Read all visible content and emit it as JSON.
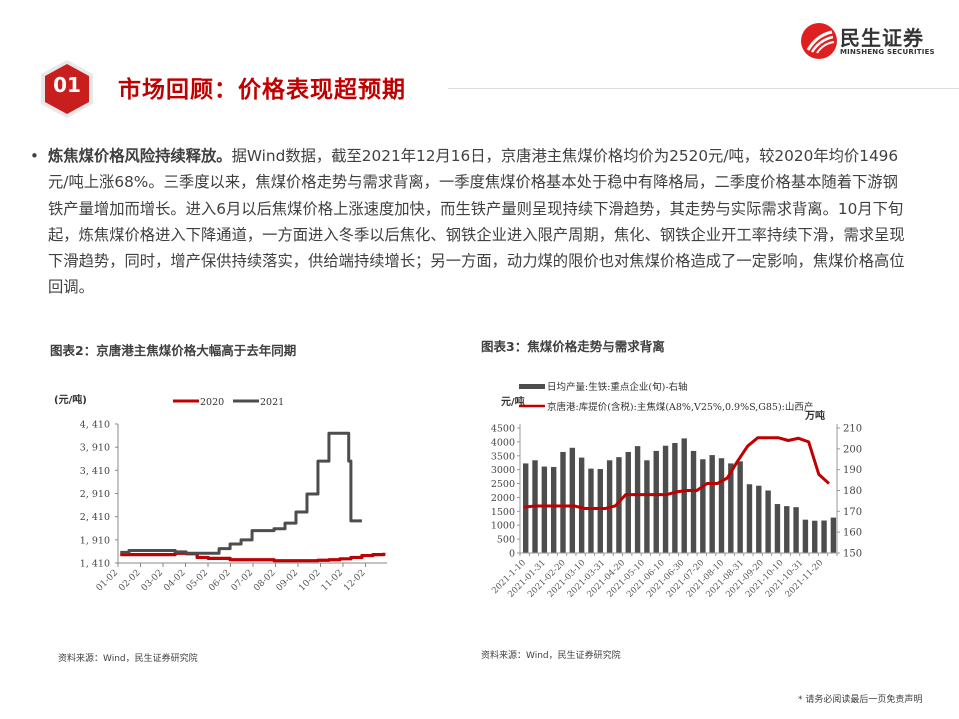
{
  "brand": {
    "name_cn": "民生证券",
    "name_en": "MINSHENG SECURITIES",
    "accent_color": "#c00000",
    "logo_color": "#e02020"
  },
  "section": {
    "number": "01",
    "title": "市场回顾：价格表现超预期"
  },
  "body": {
    "bullet": "•",
    "lead": "炼焦煤价格风险持续释放。",
    "text": "据Wind数据，截至2021年12月16日，京唐港主焦煤价格均价为2520元/吨，较2020年均价1496元/吨上涨68%。三季度以来，焦煤价格走势与需求背离，一季度焦煤价格基本处于稳中有降格局，二季度价格基本随着下游钢铁产量增加而增长。进入6月以后焦煤价格上涨速度加快，而生铁产量则呈现持续下滑趋势，其走势与实际需求背离。10月下旬起，炼焦煤价格进入下降通道，一方面进入冬季以后焦化、钢铁企业进入限产周期，焦化、钢铁企业开工率持续下滑，需求呈现下滑趋势，同时，增产保供持续落实，供给端持续增长；另一方面，动力煤的限价也对焦煤价格造成了一定影响，焦煤价格高位回调。"
  },
  "figures": {
    "fig2_title": "图表2：京唐港主焦煤价格大幅高于去年同期",
    "fig3_title": "图表3：焦煤价格走势与需求背离",
    "fig2_source": "资料来源：Wind，民生证券研究院",
    "fig3_source": "资料来源：Wind，民生证券研究院"
  },
  "footer": {
    "disclaimer": "* 请务必阅读最后一页免责声明"
  },
  "chart_data": [
    {
      "type": "line",
      "title": "图表2：京唐港主焦煤价格大幅高于去年同期",
      "ylabel": "(元/吨)",
      "xlabel": "",
      "ylim": [
        1410,
        4410
      ],
      "yticks": [
        "4,410",
        "3,910",
        "3,410",
        "2,910",
        "2,410",
        "1,910",
        "1,410"
      ],
      "x_ticks": [
        "01-02",
        "02-02",
        "03-02",
        "04-02",
        "05-02",
        "06-02",
        "07-02",
        "08-02",
        "09-02",
        "10-02",
        "11-02",
        "12-02"
      ],
      "legend": [
        "2020",
        "2021"
      ],
      "legend_position": "top",
      "grid": false,
      "series": [
        {
          "name": "2020",
          "color": "#c00000",
          "x": [
            0.0,
            0.5,
            1.0,
            1.5,
            2.0,
            2.5,
            3.0,
            3.5,
            4.0,
            4.5,
            5.0,
            5.5,
            6.0,
            6.5,
            7.0,
            7.5,
            8.0,
            8.5,
            9.0,
            9.5,
            10.0,
            10.5,
            11.0,
            11.5,
            12.0
          ],
          "values": [
            1590,
            1590,
            1590,
            1590,
            1590,
            1620,
            1610,
            1530,
            1510,
            1510,
            1480,
            1480,
            1480,
            1480,
            1460,
            1460,
            1460,
            1460,
            1470,
            1480,
            1500,
            1530,
            1570,
            1590,
            1630
          ]
        },
        {
          "name": "2021",
          "color": "#4d4d4d",
          "x": [
            0.0,
            0.4,
            1.0,
            1.5,
            2.0,
            2.5,
            3.0,
            3.5,
            4.0,
            4.5,
            5.0,
            5.5,
            6.0,
            6.5,
            7.0,
            7.5,
            8.0,
            8.5,
            9.0,
            9.5,
            10.0,
            10.4,
            10.5,
            11.0
          ],
          "values": [
            1640,
            1680,
            1680,
            1680,
            1680,
            1650,
            1620,
            1620,
            1620,
            1720,
            1820,
            1910,
            2110,
            2110,
            2150,
            2270,
            2510,
            2900,
            3610,
            4210,
            4210,
            3610,
            2320,
            2320
          ]
        }
      ]
    },
    {
      "type": "bar",
      "title": "图表3：焦煤价格走势与需求背离",
      "ylabel_left": "元/吨",
      "ylabel_right": "万吨",
      "ylim_left": [
        0,
        4500
      ],
      "ylim_right": [
        150,
        210
      ],
      "yticks_left": [
        "4500",
        "4000",
        "3500",
        "3000",
        "2500",
        "2000",
        "1500",
        "1000",
        "500",
        "0"
      ],
      "yticks_right": [
        "210",
        "200",
        "190",
        "180",
        "170",
        "160",
        "150"
      ],
      "x_ticks": [
        "2021-1-10",
        "2021-01-31",
        "2021-02-20",
        "2021-03-10",
        "2021-03-31",
        "2021-04-20",
        "2021-05-10",
        "2021-06-10",
        "2021-06-30",
        "2021-07-20",
        "2021-08-10",
        "2021-08-31",
        "2021-09-20",
        "2021-10-10",
        "2021-10-31",
        "2021-11-20"
      ],
      "legend": [
        "日均产量:生铁:重点企业(旬)-右轴",
        "京唐港:库提价(含税):主焦煤(A8%,V25%,0.9%S,G85):山西产"
      ],
      "legend_position": "top",
      "grid": false,
      "series": [
        {
          "name": "日均产量:生铁:重点企业(旬)-右轴",
          "kind": "bar",
          "axis": "right",
          "color": "#4d4d4d",
          "values": [
            193.0,
            194.5,
            191.5,
            191.3,
            198.5,
            200.5,
            195.8,
            190.5,
            190.3,
            194.5,
            196.0,
            198.5,
            201.3,
            194.5,
            199.0,
            201.5,
            202.8,
            205.0,
            199.0,
            195.0,
            197.0,
            195.5,
            193.0,
            194.0,
            183.0,
            182.3,
            180.0,
            173.5,
            172.5,
            172.0,
            166.0,
            165.5,
            165.6,
            167.0
          ]
        },
        {
          "name": "京唐港:库提价(含税):主焦煤(A8%,V25%,0.9%S,G85):山西产",
          "kind": "line",
          "axis": "left",
          "color": "#c00000",
          "values": [
            1650,
            1690,
            1690,
            1690,
            1690,
            1690,
            1600,
            1600,
            1600,
            1700,
            2100,
            2100,
            2100,
            2100,
            2100,
            2200,
            2250,
            2250,
            2500,
            2500,
            2700,
            3300,
            3850,
            4150,
            4150,
            4150,
            4050,
            4130,
            4000,
            2830,
            2500
          ]
        }
      ]
    }
  ]
}
